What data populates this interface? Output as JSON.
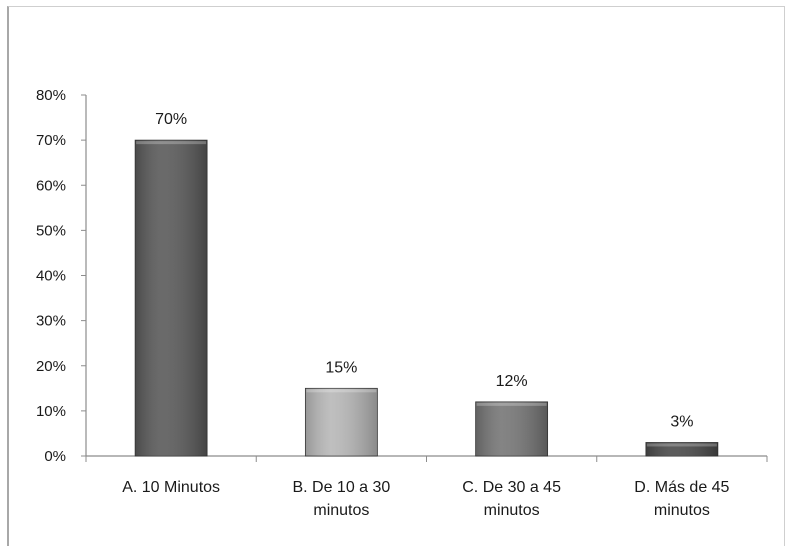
{
  "chart_data": {
    "type": "bar",
    "title": "",
    "xlabel": "",
    "ylabel": "",
    "ylim": [
      0,
      80
    ],
    "y_tick_step": 10,
    "y_ticks": [
      "0%",
      "10%",
      "20%",
      "30%",
      "40%",
      "50%",
      "60%",
      "70%",
      "80%"
    ],
    "categories": [
      [
        "A. 10 Minutos"
      ],
      [
        "B. De 10 a 30",
        "minutos"
      ],
      [
        "C. De 30 a 45",
        "minutos"
      ],
      [
        "D. Más de 45",
        "minutos"
      ]
    ],
    "values": [
      70,
      15,
      12,
      3
    ],
    "data_labels": [
      "70%",
      "15%",
      "12%",
      "3%"
    ],
    "bar_colors": [
      "#5a5a5a",
      "#b8b8b8",
      "#767676",
      "#4a4a4a"
    ],
    "grid": false,
    "legend": "none"
  }
}
